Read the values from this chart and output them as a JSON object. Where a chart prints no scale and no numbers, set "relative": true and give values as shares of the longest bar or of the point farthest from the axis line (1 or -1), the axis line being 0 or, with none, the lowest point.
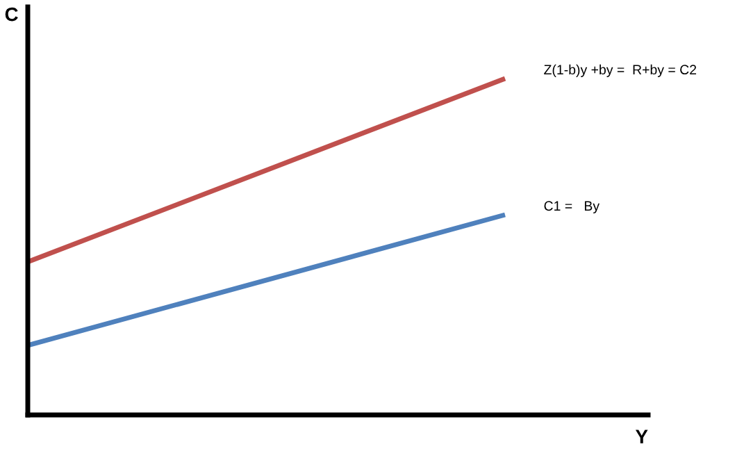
{
  "chart_data": {
    "type": "line",
    "relative": true,
    "xlabel": "Y",
    "ylabel": "C",
    "categories": [
      null,
      null
    ],
    "tick_labels": false,
    "legend": false,
    "marker": "none",
    "line_style": "solid",
    "series": [
      {
        "name": "Z(1-b)y +by =  R+by = C2",
        "color": "#c0504d",
        "values": [
          0.455,
          1
        ]
      },
      {
        "name": "C1 =   By",
        "color": "#4f81bd",
        "values": [
          0.207,
          0.595
        ]
      }
    ]
  }
}
